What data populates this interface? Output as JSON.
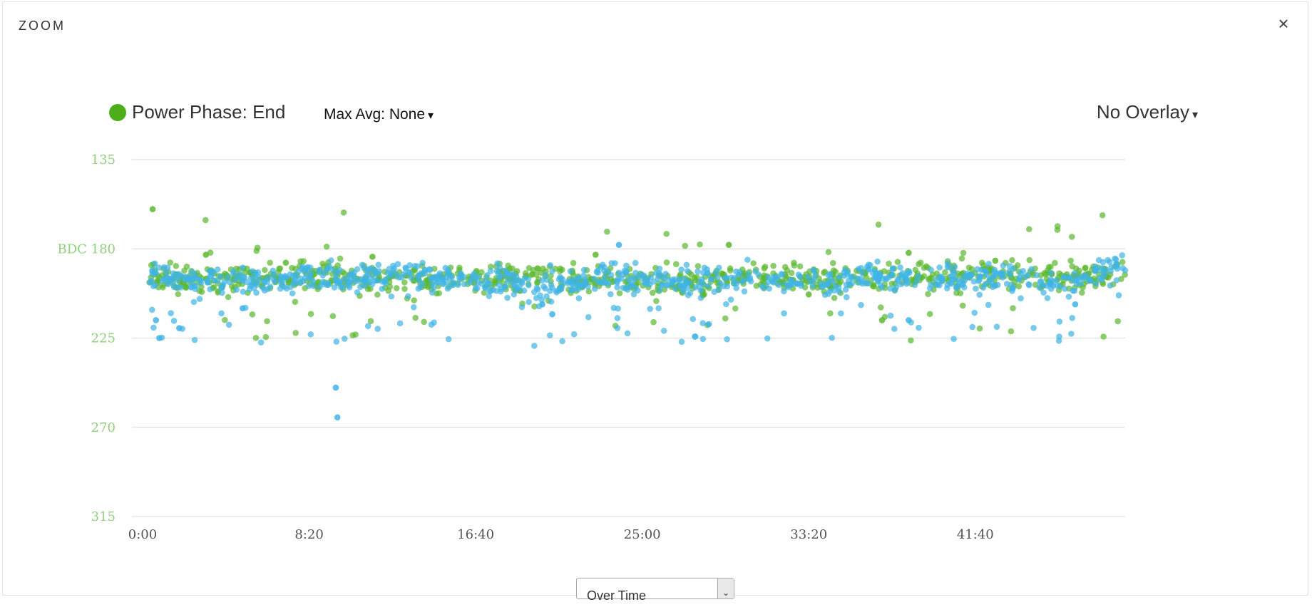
{
  "modal": {
    "title": "ZOOM",
    "close_label": "×"
  },
  "header": {
    "series_label": "Power Phase: End",
    "series_color": "#4caf1a",
    "max_avg_label": "Max Avg: None",
    "overlay_label": "No Overlay",
    "caret": "▾"
  },
  "bottom": {
    "mode_label": "Over Time",
    "mode_arrow": "⌄"
  },
  "chart_data": {
    "type": "scatter",
    "title": "",
    "xlabel": "",
    "ylabel": "",
    "y_axis": {
      "reversed": true,
      "range": [
        135,
        315
      ],
      "ticks": [
        135,
        180,
        225,
        270,
        315
      ],
      "tick_labels": [
        "135",
        "BDC 180",
        "225",
        "270",
        "315"
      ],
      "label_color": "#8fd07a"
    },
    "x_axis": {
      "range_seconds": [
        0,
        2950
      ],
      "ticks_seconds": [
        0,
        500,
        1000,
        1500,
        2000,
        2500
      ],
      "tick_labels": [
        "0:00",
        "8:20",
        "16:40",
        "25:00",
        "33:20",
        "41:40"
      ]
    },
    "grid": "horizontal",
    "series": [
      {
        "color": "#5ab82e",
        "band": [
          [
            0,
            195
          ],
          [
            200,
            196
          ],
          [
            400,
            194
          ],
          [
            600,
            193
          ],
          [
            800,
            196
          ],
          [
            1000,
            195
          ],
          [
            1200,
            193
          ],
          [
            1400,
            196
          ],
          [
            1600,
            198
          ],
          [
            1800,
            194
          ],
          [
            2000,
            195
          ],
          [
            2200,
            195
          ],
          [
            2400,
            194
          ],
          [
            2600,
            193
          ],
          [
            2800,
            195
          ],
          [
            2950,
            192
          ]
        ],
        "outliers": [
          [
            30,
            160
          ],
          [
            190,
            183
          ],
          [
            430,
            187
          ],
          [
            690,
            184
          ],
          [
            1360,
            183
          ],
          [
            1760,
            178
          ],
          [
            2000,
            203
          ],
          [
            2220,
            216
          ],
          [
            2300,
            182
          ],
          [
            2560,
            186
          ]
        ]
      },
      {
        "color": "#3fb3e6",
        "band": [
          [
            0,
            193
          ],
          [
            200,
            197
          ],
          [
            400,
            196
          ],
          [
            600,
            195
          ],
          [
            800,
            194
          ],
          [
            1000,
            196
          ],
          [
            1200,
            200
          ],
          [
            1400,
            194
          ],
          [
            1600,
            197
          ],
          [
            1800,
            196
          ],
          [
            2000,
            197
          ],
          [
            2200,
            194
          ],
          [
            2400,
            194
          ],
          [
            2600,
            195
          ],
          [
            2800,
            197
          ],
          [
            2950,
            186
          ]
        ],
        "outliers": [
          [
            40,
            216
          ],
          [
            50,
            225
          ],
          [
            110,
            220
          ],
          [
            300,
            210
          ],
          [
            580,
            250
          ],
          [
            585,
            265
          ],
          [
            1200,
            208
          ],
          [
            1230,
            213
          ],
          [
            1430,
            178
          ],
          [
            1700,
            218
          ],
          [
            2300,
            216
          ],
          [
            2400,
            196
          ],
          [
            2800,
            208
          ]
        ]
      }
    ]
  }
}
